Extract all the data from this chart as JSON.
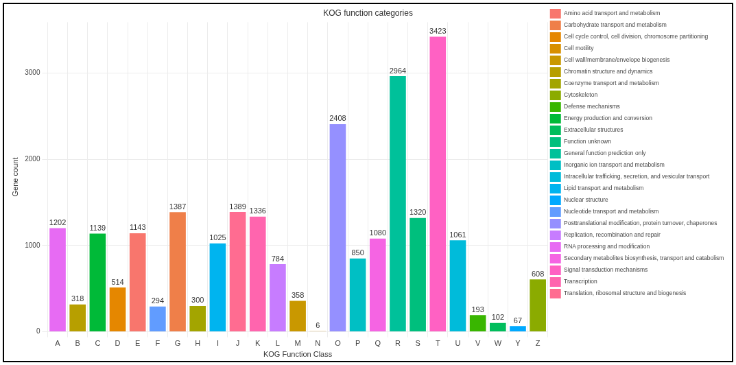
{
  "chart_data": {
    "type": "bar",
    "title": "KOG function categories",
    "xlabel": "KOG Function Class",
    "ylabel": "Gene count",
    "categories": [
      "A",
      "B",
      "C",
      "D",
      "E",
      "F",
      "G",
      "H",
      "I",
      "J",
      "K",
      "L",
      "M",
      "N",
      "O",
      "P",
      "Q",
      "R",
      "S",
      "T",
      "U",
      "V",
      "W",
      "Y",
      "Z"
    ],
    "ylim": [
      0,
      3590
    ],
    "yticks": [
      0,
      1000,
      2000,
      3000
    ],
    "grid": true,
    "legend": "right",
    "data_labels": true,
    "series": [
      {
        "name": "Amino acid transport and metabolism",
        "color": "#F8766D",
        "values": [
          null,
          null,
          null,
          null,
          1143,
          null,
          null,
          null,
          null,
          null,
          null,
          null,
          null,
          null,
          null,
          null,
          null,
          null,
          null,
          null,
          null,
          null,
          null,
          null,
          null
        ]
      },
      {
        "name": "Carbohydrate transport and metabolism",
        "color": "#EF7F49",
        "values": [
          null,
          null,
          null,
          null,
          null,
          null,
          1387,
          null,
          null,
          null,
          null,
          null,
          null,
          null,
          null,
          null,
          null,
          null,
          null,
          null,
          null,
          null,
          null,
          null,
          null
        ]
      },
      {
        "name": "Cell cycle control, cell division, chromosome partitioning",
        "color": "#E58700",
        "values": [
          null,
          null,
          null,
          514,
          null,
          null,
          null,
          null,
          null,
          null,
          null,
          null,
          null,
          null,
          null,
          null,
          null,
          null,
          null,
          null,
          null,
          null,
          null,
          null,
          null
        ]
      },
      {
        "name": "Cell motility",
        "color": "#D89000",
        "values": [
          null,
          null,
          null,
          null,
          null,
          null,
          null,
          null,
          null,
          null,
          null,
          null,
          null,
          6,
          null,
          null,
          null,
          null,
          null,
          null,
          null,
          null,
          null,
          null,
          null
        ]
      },
      {
        "name": "Cell wall/membrane/envelope biogenesis",
        "color": "#C99800",
        "values": [
          null,
          null,
          null,
          null,
          null,
          null,
          null,
          null,
          null,
          null,
          null,
          null,
          358,
          null,
          null,
          null,
          null,
          null,
          null,
          null,
          null,
          null,
          null,
          null,
          null
        ]
      },
      {
        "name": "Chromatin structure and dynamics",
        "color": "#B79F00",
        "values": [
          null,
          318,
          null,
          null,
          null,
          null,
          null,
          null,
          null,
          null,
          null,
          null,
          null,
          null,
          null,
          null,
          null,
          null,
          null,
          null,
          null,
          null,
          null,
          null,
          null
        ]
      },
      {
        "name": "Coenzyme transport and metabolism",
        "color": "#A3A500",
        "values": [
          null,
          null,
          null,
          null,
          null,
          null,
          null,
          300,
          null,
          null,
          null,
          null,
          null,
          null,
          null,
          null,
          null,
          null,
          null,
          null,
          null,
          null,
          null,
          null,
          null
        ]
      },
      {
        "name": "Cytoskeleton",
        "color": "#8BAB00",
        "values": [
          null,
          null,
          null,
          null,
          null,
          null,
          null,
          null,
          null,
          null,
          null,
          null,
          null,
          null,
          null,
          null,
          null,
          null,
          null,
          null,
          null,
          null,
          null,
          null,
          608
        ]
      },
      {
        "name": "Defense mechanisms",
        "color": "#39B600",
        "values": [
          null,
          null,
          null,
          null,
          null,
          null,
          null,
          null,
          null,
          null,
          null,
          null,
          null,
          null,
          null,
          null,
          null,
          null,
          null,
          null,
          null,
          193,
          null,
          null,
          null
        ]
      },
      {
        "name": "Energy production and conversion",
        "color": "#00BA38",
        "values": [
          null,
          null,
          1139,
          null,
          null,
          null,
          null,
          null,
          null,
          null,
          null,
          null,
          null,
          null,
          null,
          null,
          null,
          null,
          null,
          null,
          null,
          null,
          null,
          null,
          null
        ]
      },
      {
        "name": "Extracellular structures",
        "color": "#00BD5C",
        "values": [
          null,
          null,
          null,
          null,
          null,
          null,
          null,
          null,
          null,
          null,
          null,
          null,
          null,
          null,
          null,
          null,
          null,
          null,
          null,
          null,
          null,
          null,
          102,
          null,
          null
        ]
      },
      {
        "name": "Function unknown",
        "color": "#00BF7D",
        "values": [
          null,
          null,
          null,
          null,
          null,
          null,
          null,
          null,
          null,
          null,
          null,
          null,
          null,
          null,
          null,
          null,
          null,
          null,
          1320,
          null,
          null,
          null,
          null,
          null,
          null
        ]
      },
      {
        "name": "General function prediction only",
        "color": "#00C19A",
        "values": [
          null,
          null,
          null,
          null,
          null,
          null,
          null,
          null,
          null,
          null,
          null,
          null,
          null,
          null,
          null,
          null,
          null,
          2964,
          null,
          null,
          null,
          null,
          null,
          null,
          null
        ]
      },
      {
        "name": "Inorganic ion transport and metabolism",
        "color": "#00BFC4",
        "values": [
          null,
          null,
          null,
          null,
          null,
          null,
          null,
          null,
          null,
          null,
          null,
          null,
          null,
          null,
          null,
          850,
          null,
          null,
          null,
          null,
          null,
          null,
          null,
          null,
          null
        ]
      },
      {
        "name": "Intracellular trafficking, secretion, and vesicular transport",
        "color": "#00BBDA",
        "values": [
          null,
          null,
          null,
          null,
          null,
          null,
          null,
          null,
          null,
          null,
          null,
          null,
          null,
          null,
          null,
          null,
          null,
          null,
          null,
          null,
          1061,
          null,
          null,
          null,
          null
        ]
      },
      {
        "name": "Lipid transport and metabolism",
        "color": "#00B4EF",
        "values": [
          null,
          null,
          null,
          null,
          null,
          null,
          null,
          null,
          1025,
          null,
          null,
          null,
          null,
          null,
          null,
          null,
          null,
          null,
          null,
          null,
          null,
          null,
          null,
          null,
          null
        ]
      },
      {
        "name": "Nuclear structure",
        "color": "#00A9FF",
        "values": [
          null,
          null,
          null,
          null,
          null,
          null,
          null,
          null,
          null,
          null,
          null,
          null,
          null,
          null,
          null,
          null,
          null,
          null,
          null,
          null,
          null,
          null,
          null,
          67,
          null
        ]
      },
      {
        "name": "Nucleotide transport and metabolism",
        "color": "#619CFF",
        "values": [
          null,
          null,
          null,
          null,
          null,
          294,
          null,
          null,
          null,
          null,
          null,
          null,
          null,
          null,
          null,
          null,
          null,
          null,
          null,
          null,
          null,
          null,
          null,
          null,
          null
        ]
      },
      {
        "name": "Posttranslational modification, protein turnover, chaperones",
        "color": "#9590FF",
        "values": [
          null,
          null,
          null,
          null,
          null,
          null,
          null,
          null,
          null,
          null,
          null,
          null,
          null,
          null,
          2408,
          null,
          null,
          null,
          null,
          null,
          null,
          null,
          null,
          null,
          null
        ]
      },
      {
        "name": "Replication, recombination and repair",
        "color": "#C77CFF",
        "values": [
          null,
          null,
          null,
          null,
          null,
          null,
          null,
          null,
          null,
          null,
          null,
          784,
          null,
          null,
          null,
          null,
          null,
          null,
          null,
          null,
          null,
          null,
          null,
          null,
          null
        ]
      },
      {
        "name": "RNA processing and modification",
        "color": "#E76BF3",
        "values": [
          1202,
          null,
          null,
          null,
          null,
          null,
          null,
          null,
          null,
          null,
          null,
          null,
          null,
          null,
          null,
          null,
          null,
          null,
          null,
          null,
          null,
          null,
          null,
          null,
          null
        ]
      },
      {
        "name": "Secondary metabolites biosynthesis, transport and catabolism",
        "color": "#F564E3",
        "values": [
          null,
          null,
          null,
          null,
          null,
          null,
          null,
          null,
          null,
          null,
          null,
          null,
          null,
          null,
          null,
          null,
          1080,
          null,
          null,
          null,
          null,
          null,
          null,
          null,
          null
        ]
      },
      {
        "name": "Signal transduction mechanisms",
        "color": "#FF61C3",
        "values": [
          null,
          null,
          null,
          null,
          null,
          null,
          null,
          null,
          null,
          null,
          null,
          null,
          null,
          null,
          null,
          null,
          null,
          null,
          null,
          3423,
          null,
          null,
          null,
          null,
          null
        ]
      },
      {
        "name": "Transcription",
        "color": "#FF65AE",
        "values": [
          null,
          null,
          null,
          null,
          null,
          null,
          null,
          null,
          null,
          null,
          1336,
          null,
          null,
          null,
          null,
          null,
          null,
          null,
          null,
          null,
          null,
          null,
          null,
          null,
          null
        ]
      },
      {
        "name": "Translation, ribosomal structure and biogenesis",
        "color": "#FF6C91",
        "values": [
          null,
          null,
          null,
          null,
          null,
          null,
          null,
          null,
          null,
          1389,
          null,
          null,
          null,
          null,
          null,
          null,
          null,
          null,
          null,
          null,
          null,
          null,
          null,
          null,
          null
        ]
      }
    ]
  }
}
